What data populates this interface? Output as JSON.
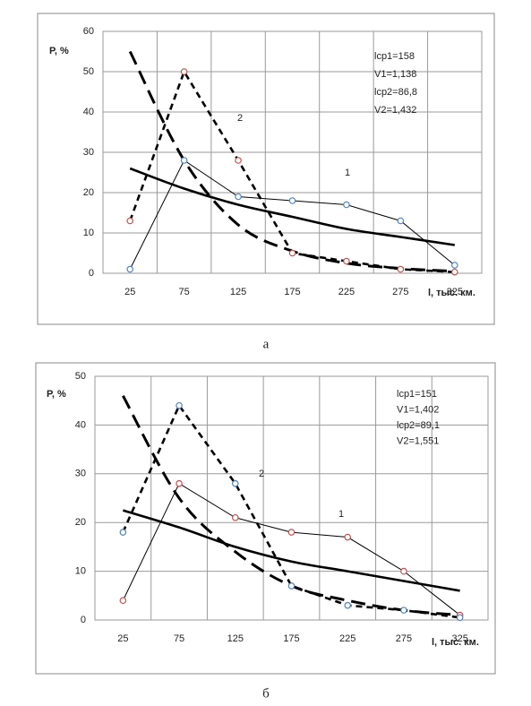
{
  "chart_data": [
    {
      "type": "line",
      "caption": "а",
      "y_label": "P, %",
      "x_label": "l, тыс. км.",
      "categories": [
        25,
        75,
        125,
        175,
        225,
        275,
        325
      ],
      "ylim": [
        0,
        60
      ],
      "yticks": [
        0,
        10,
        20,
        30,
        40,
        50,
        60
      ],
      "grid": true,
      "stats": [
        "lср1=158",
        "V1=1,138",
        "lср2=86,8",
        "V2=1,432"
      ],
      "curve_labels": [
        "1",
        "2"
      ],
      "series": [
        {
          "values": [
            1,
            28,
            19,
            18,
            17,
            13,
            2
          ],
          "color": "#000000",
          "marker_color": "#4f81bd",
          "style": "thin"
        },
        {
          "values": [
            13,
            50,
            28,
            5,
            3,
            1,
            0.3
          ],
          "color": "#000000",
          "marker_color": "#c0504d",
          "style": "dashed"
        },
        {
          "values": [
            26,
            21,
            17,
            14,
            11,
            9,
            7
          ],
          "color": "#000000",
          "style": "thick"
        },
        {
          "values": [
            55,
            28,
            12,
            5.5,
            2.5,
            1.2,
            0.5
          ],
          "color": "#000000",
          "style": "thick-dashed"
        }
      ]
    },
    {
      "type": "line",
      "caption": "б",
      "y_label": "P, %",
      "x_label": "l, тыс. км.",
      "categories": [
        25,
        75,
        125,
        175,
        225,
        275,
        325
      ],
      "ylim": [
        0,
        50
      ],
      "yticks": [
        0,
        10,
        20,
        30,
        40,
        50
      ],
      "grid": true,
      "stats": [
        "lср1=151",
        "V1=1,402",
        "lср2=89,1",
        "V2=1,551"
      ],
      "curve_labels": [
        "1",
        "2"
      ],
      "series": [
        {
          "values": [
            4,
            28,
            21,
            18,
            17,
            10,
            1
          ],
          "color": "#000000",
          "marker_color": "#c0504d",
          "style": "thin"
        },
        {
          "values": [
            18,
            44,
            28,
            7,
            3,
            2,
            0.5
          ],
          "color": "#000000",
          "marker_color": "#4f81bd",
          "style": "dashed"
        },
        {
          "values": [
            22.5,
            19,
            15,
            12,
            10,
            8,
            6
          ],
          "color": "#000000",
          "style": "thick"
        },
        {
          "values": [
            46,
            25,
            14,
            7,
            4,
            2,
            1
          ],
          "color": "#000000",
          "style": "thick-dashed"
        }
      ]
    }
  ]
}
